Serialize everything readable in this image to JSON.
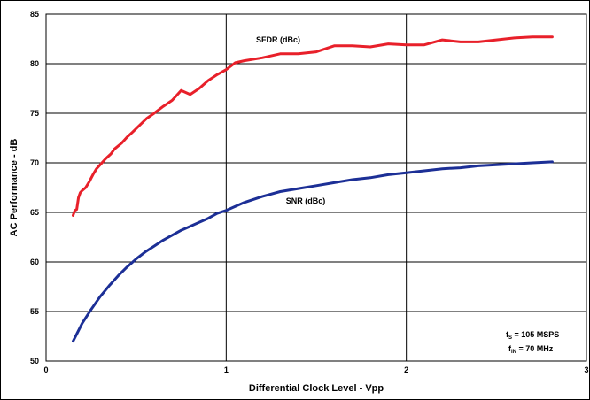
{
  "chart_data": {
    "type": "line",
    "title": "",
    "xlabel": "Differential Clock Level - Vpp",
    "ylabel": "AC Performance - dB",
    "xlim": [
      0,
      3
    ],
    "ylim": [
      50,
      85
    ],
    "xticks": [
      0,
      1,
      2,
      3
    ],
    "yticks": [
      50,
      55,
      60,
      65,
      70,
      75,
      80,
      85
    ],
    "grid": true,
    "legend": "none",
    "series": [
      {
        "name": "SFDR (dBc)",
        "color": "#e8202a",
        "x": [
          0.15,
          0.16,
          0.17,
          0.18,
          0.19,
          0.2,
          0.22,
          0.24,
          0.26,
          0.28,
          0.3,
          0.33,
          0.36,
          0.38,
          0.42,
          0.45,
          0.48,
          0.52,
          0.56,
          0.6,
          0.65,
          0.7,
          0.75,
          0.8,
          0.85,
          0.9,
          0.95,
          1.0,
          1.05,
          1.1,
          1.2,
          1.3,
          1.4,
          1.5,
          1.6,
          1.7,
          1.8,
          1.9,
          2.0,
          2.1,
          2.2,
          2.3,
          2.4,
          2.5,
          2.6,
          2.7,
          2.81
        ],
        "y": [
          64.7,
          65.2,
          65.3,
          66.5,
          67.0,
          67.2,
          67.5,
          68.1,
          68.8,
          69.4,
          69.8,
          70.4,
          70.9,
          71.4,
          72.0,
          72.6,
          73.1,
          73.8,
          74.5,
          75.0,
          75.7,
          76.3,
          77.3,
          76.9,
          77.5,
          78.3,
          78.9,
          79.4,
          80.1,
          80.3,
          80.6,
          81.0,
          81.0,
          81.2,
          81.8,
          81.8,
          81.7,
          82.0,
          81.9,
          81.9,
          82.4,
          82.2,
          82.2,
          82.4,
          82.6,
          82.7,
          82.7
        ]
      },
      {
        "name": "SNR (dBc)",
        "color": "#1c2f96",
        "x": [
          0.15,
          0.2,
          0.25,
          0.3,
          0.35,
          0.4,
          0.45,
          0.5,
          0.55,
          0.6,
          0.65,
          0.7,
          0.75,
          0.8,
          0.85,
          0.9,
          0.95,
          1.0,
          1.1,
          1.2,
          1.3,
          1.4,
          1.5,
          1.6,
          1.7,
          1.8,
          1.9,
          2.0,
          2.1,
          2.2,
          2.3,
          2.4,
          2.5,
          2.6,
          2.7,
          2.81
        ],
        "y": [
          52.0,
          53.8,
          55.2,
          56.5,
          57.6,
          58.6,
          59.5,
          60.3,
          61.0,
          61.6,
          62.2,
          62.7,
          63.2,
          63.6,
          64.0,
          64.4,
          64.9,
          65.2,
          66.0,
          66.6,
          67.1,
          67.4,
          67.7,
          68.0,
          68.3,
          68.5,
          68.8,
          69.0,
          69.2,
          69.4,
          69.5,
          69.7,
          69.8,
          69.9,
          70.0,
          70.1
        ]
      }
    ],
    "annotations": {
      "sfdr_label": "SFDR (dBc)",
      "snr_label": "SNR (dBc)",
      "cond_fs_main": "f",
      "cond_fs_sub": "S",
      "cond_fs_rest": " = 105 MSPS",
      "cond_fin_main": "f",
      "cond_fin_sub": "IN",
      "cond_fin_rest": " = 70 MHz"
    }
  }
}
